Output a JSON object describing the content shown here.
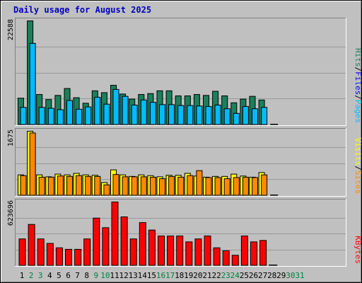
{
  "colors": {
    "frame_bg": "#c0c0c0",
    "panel_bg": "#c0c0c0",
    "hits_front": "#00bbff",
    "hits_back": "#1a805c",
    "sites": "#ff8800",
    "visits": "#ffff00",
    "kbytes": "#ff0000",
    "weekday_label": "#000000",
    "weekend_label": "#008040",
    "title": "#0000c0"
  },
  "chart_data": {
    "type": "bar",
    "title": "Daily usage for August 2025",
    "categories": [
      "1",
      "2",
      "3",
      "4",
      "5",
      "6",
      "7",
      "8",
      "9",
      "10",
      "11",
      "12",
      "13",
      "14",
      "15",
      "16",
      "17",
      "18",
      "19",
      "20",
      "21",
      "22",
      "23",
      "24",
      "25",
      "26",
      "27",
      "28",
      "29",
      "30",
      "31"
    ],
    "weekend_days": [
      "2",
      "3",
      "9",
      "10",
      "16",
      "17",
      "23",
      "24",
      "30",
      "31"
    ],
    "panels": [
      {
        "name": "hits-files-pages",
        "ymax_label": "22588",
        "ymax": 22588,
        "legend": [
          {
            "label": "Pages",
            "color": "#00bbff"
          },
          {
            "label": "Files",
            "color": "#0000ff"
          },
          {
            "label": "Hits",
            "color": "#1a805c"
          }
        ],
        "legend_separator": "/",
        "series": [
          {
            "name": "Hits",
            "color": "#1a805c",
            "values": [
              5800,
              22588,
              6600,
              5500,
              6400,
              7900,
              5900,
              4700,
              7400,
              7000,
              8600,
              6700,
              5600,
              6600,
              6800,
              7400,
              7400,
              6300,
              6300,
              6600,
              6400,
              7300,
              6300,
              4800,
              5600,
              6200,
              5400,
              0,
              0,
              0,
              0
            ]
          },
          {
            "name": "Files",
            "color": "#00bbff",
            "values": [
              3800,
              17700,
              3800,
              3600,
              3300,
              5300,
              3400,
              3900,
              6000,
              4500,
              7700,
              6200,
              4300,
              5400,
              4900,
              4400,
              4400,
              4200,
              4200,
              4100,
              4000,
              4300,
              3500,
              2500,
              4000,
              3500,
              3800,
              0,
              0,
              0,
              0
            ]
          }
        ]
      },
      {
        "name": "visits-sites",
        "ymax_label": "1675",
        "ymax": 1675,
        "legend": [
          {
            "label": "Sites",
            "color": "#ff8800"
          },
          {
            "label": "Visits",
            "color": "#ffff00"
          }
        ],
        "legend_separator": "/",
        "series": [
          {
            "name": "Visits",
            "color": "#ffff00",
            "values": [
              540,
              1675,
              540,
              490,
              560,
              540,
              580,
              540,
              530,
              340,
              670,
              540,
              500,
              540,
              520,
              490,
              530,
              530,
              580,
              510,
              480,
              500,
              500,
              560,
              510,
              480,
              600,
              0,
              0,
              0,
              0
            ]
          },
          {
            "name": "Sites",
            "color": "#ff8800",
            "values": [
              520,
              1630,
              480,
              480,
              510,
              500,
              520,
              500,
              500,
              280,
              550,
              490,
              490,
              490,
              480,
              440,
              500,
              480,
              520,
              650,
              470,
              470,
              440,
              470,
              480,
              470,
              540,
              0,
              0,
              0,
              0
            ]
          }
        ]
      },
      {
        "name": "kbytes",
        "ymax_label": "623696",
        "ymax": 623696,
        "legend": [
          {
            "label": "KBytes",
            "color": "#ff0000"
          }
        ],
        "legend_separator": "",
        "series": [
          {
            "name": "KBytes",
            "color": "#ff0000",
            "values": [
              262000,
              404000,
              262000,
              218000,
              175000,
              160000,
              160000,
              262000,
              466000,
              372000,
              623696,
              478000,
              262000,
              422000,
              349000,
              291000,
              291000,
              291000,
              233000,
              262000,
              291000,
              175000,
              146000,
              102000,
              291000,
              233000,
              247000,
              0,
              0,
              0,
              0
            ]
          }
        ]
      }
    ]
  }
}
